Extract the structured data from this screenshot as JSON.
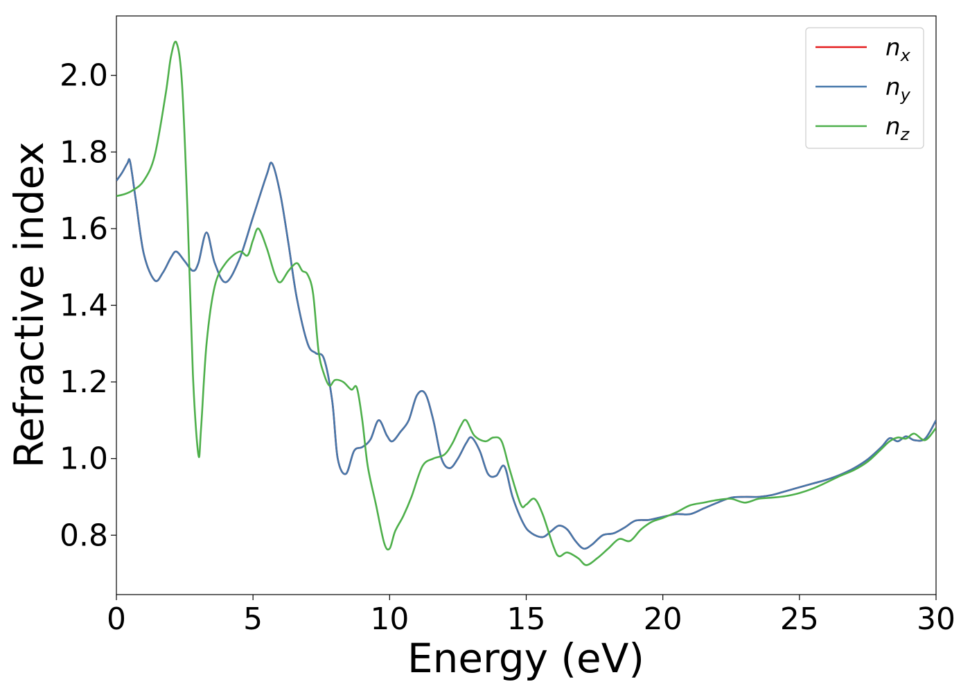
{
  "chart_data": {
    "type": "line",
    "xlabel": "Energy (eV)",
    "ylabel": "Refractive index",
    "xlim": [
      0,
      30
    ],
    "ylim": [
      0.645,
      2.155
    ],
    "xticks": [
      0,
      5,
      10,
      15,
      20,
      25,
      30
    ],
    "xtick_labels": [
      "0",
      "5",
      "10",
      "15",
      "20",
      "25",
      "30"
    ],
    "yticks": [
      0.8,
      1.0,
      1.2,
      1.4,
      1.6,
      1.8,
      2.0
    ],
    "ytick_labels": [
      "0.8",
      "1.0",
      "1.2",
      "1.4",
      "1.6",
      "1.8",
      "2.0"
    ],
    "grid": false,
    "legend_position": "top-right",
    "series": [
      {
        "name": "n_x",
        "label_main": "n",
        "label_sub": "x",
        "color": "#e41a1c",
        "x": [
          0,
          0.2,
          0.4,
          0.5,
          0.7,
          1.0,
          1.4,
          1.7,
          2.0,
          2.2,
          2.5,
          2.8,
          3.0,
          3.3,
          3.6,
          4.0,
          4.5,
          5.0,
          5.5,
          5.7,
          6.0,
          6.3,
          6.6,
          7.0,
          7.3,
          7.6,
          7.9,
          8.1,
          8.4,
          8.7,
          9.0,
          9.3,
          9.6,
          9.9,
          10.1,
          10.4,
          10.7,
          11.0,
          11.3,
          11.6,
          11.9,
          12.2,
          12.5,
          12.8,
          13.0,
          13.3,
          13.6,
          13.9,
          14.2,
          14.5,
          14.9,
          15.2,
          15.6,
          15.9,
          16.2,
          16.5,
          16.8,
          17.1,
          17.4,
          17.8,
          18.2,
          18.6,
          19.0,
          19.5,
          20.0,
          20.5,
          21.0,
          21.5,
          22.0,
          22.5,
          23.0,
          23.5,
          24.0,
          24.5,
          25.0,
          25.5,
          26.0,
          26.5,
          27.0,
          27.5,
          28.0,
          28.3,
          28.6,
          28.9,
          29.2,
          29.6,
          30.0
        ],
        "y": [
          1.725,
          1.745,
          1.77,
          1.775,
          1.68,
          1.535,
          1.465,
          1.485,
          1.525,
          1.54,
          1.515,
          1.49,
          1.51,
          1.59,
          1.51,
          1.46,
          1.52,
          1.63,
          1.74,
          1.77,
          1.69,
          1.56,
          1.42,
          1.3,
          1.275,
          1.26,
          1.15,
          1.0,
          0.96,
          1.02,
          1.03,
          1.05,
          1.1,
          1.06,
          1.045,
          1.07,
          1.1,
          1.165,
          1.17,
          1.1,
          1.0,
          0.975,
          1.0,
          1.04,
          1.055,
          1.02,
          0.96,
          0.955,
          0.98,
          0.9,
          0.83,
          0.805,
          0.795,
          0.81,
          0.825,
          0.815,
          0.785,
          0.765,
          0.775,
          0.8,
          0.805,
          0.82,
          0.838,
          0.84,
          0.848,
          0.855,
          0.855,
          0.87,
          0.885,
          0.898,
          0.9,
          0.9,
          0.905,
          0.915,
          0.925,
          0.935,
          0.945,
          0.958,
          0.975,
          0.998,
          1.03,
          1.053,
          1.045,
          1.058,
          1.048,
          1.052,
          1.1
        ]
      },
      {
        "name": "n_y",
        "label_main": "n",
        "label_sub": "y",
        "color": "#4477aa",
        "x": [
          0,
          0.2,
          0.4,
          0.5,
          0.7,
          1.0,
          1.4,
          1.7,
          2.0,
          2.2,
          2.5,
          2.8,
          3.0,
          3.3,
          3.6,
          4.0,
          4.5,
          5.0,
          5.5,
          5.7,
          6.0,
          6.3,
          6.6,
          7.0,
          7.3,
          7.6,
          7.9,
          8.1,
          8.4,
          8.7,
          9.0,
          9.3,
          9.6,
          9.9,
          10.1,
          10.4,
          10.7,
          11.0,
          11.3,
          11.6,
          11.9,
          12.2,
          12.5,
          12.8,
          13.0,
          13.3,
          13.6,
          13.9,
          14.2,
          14.5,
          14.9,
          15.2,
          15.6,
          15.9,
          16.2,
          16.5,
          16.8,
          17.1,
          17.4,
          17.8,
          18.2,
          18.6,
          19.0,
          19.5,
          20.0,
          20.5,
          21.0,
          21.5,
          22.0,
          22.5,
          23.0,
          23.5,
          24.0,
          24.5,
          25.0,
          25.5,
          26.0,
          26.5,
          27.0,
          27.5,
          28.0,
          28.3,
          28.6,
          28.9,
          29.2,
          29.6,
          30.0
        ],
        "y": [
          1.725,
          1.745,
          1.77,
          1.775,
          1.68,
          1.535,
          1.465,
          1.485,
          1.525,
          1.54,
          1.515,
          1.49,
          1.51,
          1.59,
          1.51,
          1.46,
          1.52,
          1.63,
          1.74,
          1.77,
          1.69,
          1.56,
          1.42,
          1.3,
          1.275,
          1.26,
          1.15,
          1.0,
          0.96,
          1.02,
          1.03,
          1.05,
          1.1,
          1.06,
          1.045,
          1.07,
          1.1,
          1.165,
          1.17,
          1.1,
          1.0,
          0.975,
          1.0,
          1.04,
          1.055,
          1.02,
          0.96,
          0.955,
          0.98,
          0.9,
          0.83,
          0.805,
          0.795,
          0.81,
          0.825,
          0.815,
          0.785,
          0.765,
          0.775,
          0.8,
          0.805,
          0.82,
          0.838,
          0.84,
          0.848,
          0.855,
          0.855,
          0.87,
          0.885,
          0.898,
          0.9,
          0.9,
          0.905,
          0.915,
          0.925,
          0.935,
          0.945,
          0.958,
          0.975,
          0.998,
          1.03,
          1.053,
          1.045,
          1.058,
          1.048,
          1.052,
          1.1
        ]
      },
      {
        "name": "n_z",
        "label_main": "n",
        "label_sub": "z",
        "color": "#4daf4a",
        "x": [
          0,
          0.3,
          0.6,
          1.0,
          1.4,
          1.8,
          2.0,
          2.2,
          2.4,
          2.6,
          2.8,
          3.0,
          3.1,
          3.3,
          3.6,
          4.0,
          4.5,
          4.8,
          5.0,
          5.2,
          5.5,
          5.8,
          6.0,
          6.3,
          6.6,
          6.8,
          7.0,
          7.2,
          7.4,
          7.6,
          7.8,
          8.0,
          8.3,
          8.6,
          8.8,
          9.0,
          9.2,
          9.5,
          9.8,
          10.0,
          10.2,
          10.5,
          10.8,
          11.2,
          11.6,
          12.0,
          12.3,
          12.6,
          12.8,
          13.1,
          13.5,
          13.8,
          14.1,
          14.4,
          14.8,
          15.0,
          15.3,
          15.6,
          16.0,
          16.2,
          16.5,
          16.9,
          17.2,
          17.6,
          18.0,
          18.4,
          18.8,
          19.2,
          19.6,
          20.0,
          20.5,
          21.0,
          21.5,
          22.0,
          22.5,
          23.0,
          23.5,
          24.0,
          24.5,
          25.0,
          25.5,
          26.0,
          26.5,
          27.0,
          27.5,
          28.0,
          28.3,
          28.6,
          28.9,
          29.2,
          29.6,
          30.0
        ],
        "y": [
          1.685,
          1.69,
          1.7,
          1.725,
          1.79,
          1.95,
          2.05,
          2.085,
          1.98,
          1.65,
          1.22,
          1.01,
          1.08,
          1.3,
          1.45,
          1.51,
          1.54,
          1.53,
          1.57,
          1.6,
          1.55,
          1.48,
          1.46,
          1.49,
          1.51,
          1.49,
          1.48,
          1.43,
          1.28,
          1.22,
          1.19,
          1.205,
          1.2,
          1.18,
          1.185,
          1.1,
          0.98,
          0.88,
          0.78,
          0.765,
          0.81,
          0.85,
          0.9,
          0.98,
          1.0,
          1.01,
          1.04,
          1.085,
          1.1,
          1.06,
          1.045,
          1.055,
          1.045,
          0.97,
          0.88,
          0.88,
          0.895,
          0.855,
          0.77,
          0.745,
          0.755,
          0.74,
          0.722,
          0.74,
          0.765,
          0.79,
          0.785,
          0.815,
          0.835,
          0.845,
          0.86,
          0.878,
          0.885,
          0.892,
          0.895,
          0.885,
          0.895,
          0.898,
          0.902,
          0.91,
          0.922,
          0.938,
          0.955,
          0.97,
          0.992,
          1.025,
          1.045,
          1.055,
          1.052,
          1.065,
          1.048,
          1.08
        ]
      }
    ]
  }
}
